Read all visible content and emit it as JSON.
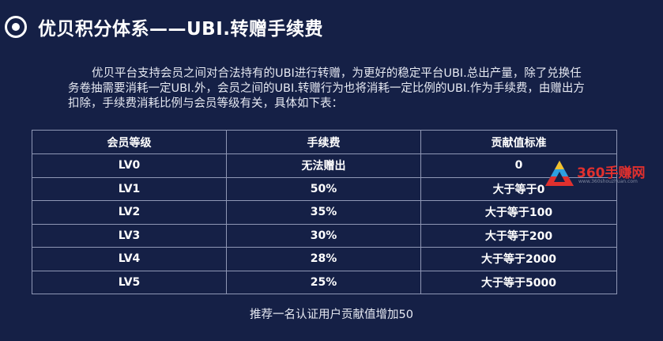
{
  "header": {
    "title": "优贝积分体系——UBI.转赠手续费"
  },
  "intro": {
    "lines": [
      "优贝平台支持会员之间对合法持有的UBI进行转赠，为更好的稳定平台UBI.总出产量，除了兑换任",
      "务卷抽需要消耗一定UBI.外，会员之间的UBI.转赠行为也将消耗一定比例的UBI.作为手续费，由赠出方",
      "扣除，手续费消耗比例与会员等级有关，具体如下表："
    ]
  },
  "table": {
    "headers": [
      "会员等级",
      "手续费",
      "贡献值标准"
    ],
    "rows": [
      [
        "LV0",
        "无法赠出",
        "0"
      ],
      [
        "LV1",
        "50%",
        "大于等于0"
      ],
      [
        "LV2",
        "35%",
        "大于等于100"
      ],
      [
        "LV3",
        "30%",
        "大于等于200"
      ],
      [
        "LV4",
        "28%",
        "大于等于2000"
      ],
      [
        "LV5",
        "25%",
        "大于等于5000"
      ]
    ]
  },
  "footnote": "推荐一名认证用户贡献值增加50",
  "watermark": {
    "text": "360手赚网",
    "subtext": "www.360shouzhuan.com"
  },
  "colors": {
    "background": "#152046",
    "table_border": "#8f97b5",
    "watermark_red": "#e0302e"
  }
}
